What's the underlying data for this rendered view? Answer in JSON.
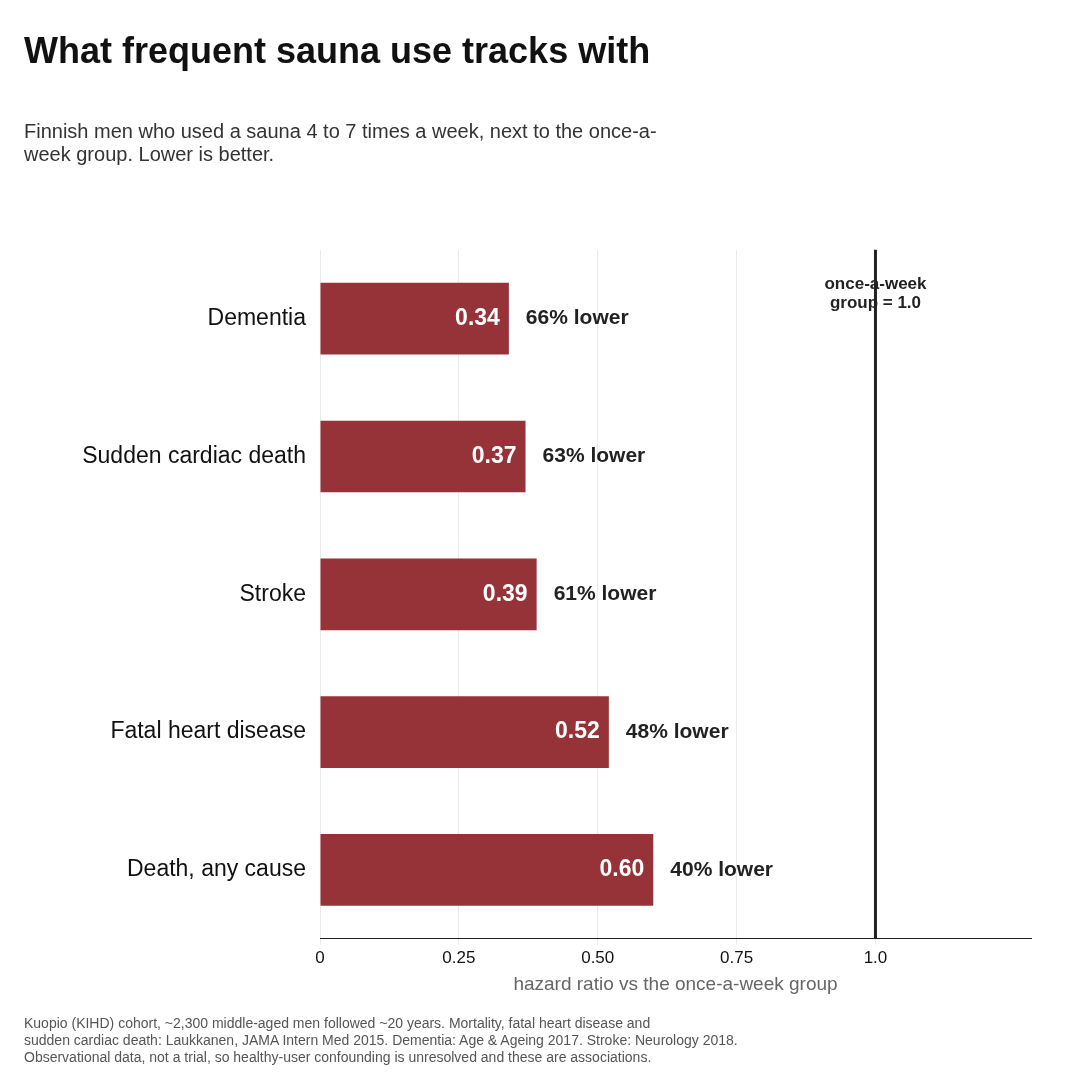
{
  "chart_data": {
    "type": "bar",
    "orientation": "horizontal",
    "title": "What frequent sauna use tracks with",
    "subtitle": "Finnish men who used a sauna 4 to 7 times a week, next to the once-a-week group. Lower is better.",
    "xlabel": "hazard ratio vs the once-a-week group",
    "categories": [
      "Dementia",
      "Sudden cardiac death",
      "Stroke",
      "Fatal heart disease",
      "Death, any cause"
    ],
    "values": [
      0.34,
      0.37,
      0.39,
      0.52,
      0.6
    ],
    "color": "#963339",
    "value_labels": [
      "0.34",
      "0.37",
      "0.39",
      "0.52",
      "0.60"
    ],
    "xlim": [
      0,
      1.28
    ],
    "xticks": [
      0,
      0.25,
      {
        "value": 0.5,
        "label": "0.50"
      },
      0.75,
      {
        "value": 1,
        "label": "1.0"
      }
    ],
    "grid": "x",
    "legend": false,
    "ref_lines": [
      {
        "axis": "x",
        "value": 1,
        "label": "once-a-week\ngroup = 1.0",
        "color": "#222222"
      }
    ],
    "annotations": [
      {
        "text": "66% lower",
        "x": 0.34,
        "y": "Dementia"
      },
      {
        "text": "63% lower",
        "x": 0.37,
        "y": "Sudden cardiac death"
      },
      {
        "text": "61% lower",
        "x": 0.39,
        "y": "Stroke"
      },
      {
        "text": "48% lower",
        "x": 0.52,
        "y": "Fatal heart disease"
      },
      {
        "text": "40% lower",
        "x": 0.6,
        "y": "Death, any cause"
      },
      "Kuopio (KIHD) cohort, ~2,300 middle-aged men followed ~20 years. Mortality, fatal heart disease and\nsudden cardiac death: Laukkanen, JAMA Intern Med 2015. Dementia: Age & Ageing 2017. Stroke: Neurology 2018.\nObservational data, not a trial, so healthy-user confounding is unresolved and these are associations."
    ]
  }
}
